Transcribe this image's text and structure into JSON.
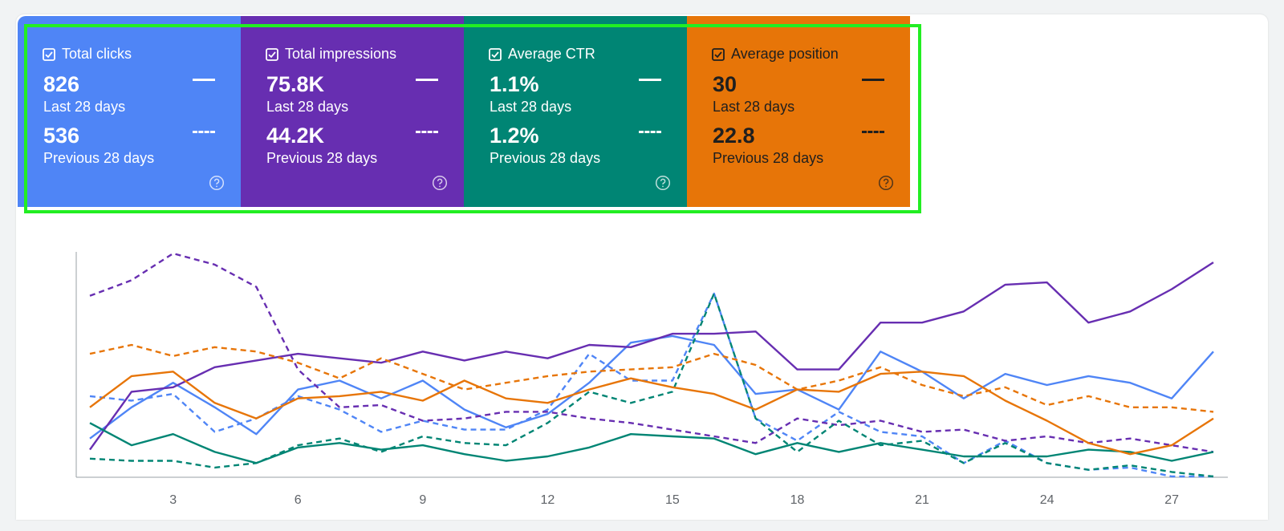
{
  "metrics": [
    {
      "label": "Total clicks",
      "value": "826",
      "period": "Last 28 days",
      "prev_value": "536",
      "prev_period": "Previous 28 days",
      "color": "#4f85f6",
      "text_color": "#ffffff"
    },
    {
      "label": "Total impressions",
      "value": "75.8K",
      "period": "Last 28 days",
      "prev_value": "44.2K",
      "prev_period": "Previous 28 days",
      "color": "#672eb1",
      "text_color": "#ffffff"
    },
    {
      "label": "Average CTR",
      "value": "1.1%",
      "period": "Last 28 days",
      "prev_value": "1.2%",
      "prev_period": "Previous 28 days",
      "color": "#008574",
      "text_color": "#ffffff"
    },
    {
      "label": "Average position",
      "value": "30",
      "period": "Last 28 days",
      "prev_value": "22.8",
      "prev_period": "Previous 28 days",
      "color": "#e77508",
      "text_color": "#1f1f1f"
    }
  ],
  "chart_data": {
    "type": "line",
    "x": [
      1,
      2,
      3,
      4,
      5,
      6,
      7,
      8,
      9,
      10,
      11,
      12,
      13,
      14,
      15,
      16,
      17,
      18,
      19,
      20,
      21,
      22,
      23,
      24,
      25,
      26,
      27,
      28
    ],
    "xticks": [
      3,
      6,
      9,
      12,
      15,
      18,
      21,
      24,
      27
    ],
    "ylim": [
      0,
      100
    ],
    "grid": false,
    "series": [
      {
        "metric": "Total clicks",
        "style": "solid",
        "color": "#4f85f6",
        "values": [
          17,
          31,
          42,
          31,
          19,
          39,
          43,
          35,
          43,
          30,
          22,
          28,
          42,
          60,
          63,
          59,
          37,
          39,
          30,
          56,
          47,
          35,
          46,
          41,
          45,
          42,
          35,
          56
        ]
      },
      {
        "metric": "Total clicks",
        "style": "dashed",
        "color": "#4f85f6",
        "values": [
          36,
          34,
          37,
          20,
          26,
          36,
          30,
          20,
          25,
          21,
          21,
          30,
          55,
          43,
          43,
          82,
          26,
          16,
          29,
          20,
          18,
          6,
          16,
          6,
          3,
          4,
          0,
          0
        ]
      },
      {
        "metric": "Total impressions",
        "style": "solid",
        "color": "#672eb1",
        "values": [
          12,
          38,
          40,
          49,
          52,
          55,
          53,
          51,
          56,
          52,
          56,
          53,
          59,
          58,
          64,
          64,
          65,
          48,
          48,
          69,
          69,
          74,
          86,
          87,
          69,
          74,
          84,
          96
        ]
      },
      {
        "metric": "Total impressions",
        "style": "dashed",
        "color": "#672eb1",
        "values": [
          81,
          88,
          100,
          95,
          85,
          48,
          31,
          32,
          25,
          26,
          29,
          29,
          26,
          24,
          21,
          18,
          15,
          26,
          23,
          25,
          20,
          21,
          16,
          18,
          15,
          17,
          14,
          11
        ]
      },
      {
        "metric": "Average CTR",
        "style": "solid",
        "color": "#008574",
        "values": [
          24,
          14,
          19,
          11,
          6,
          13,
          15,
          12,
          14,
          10,
          7,
          9,
          13,
          19,
          18,
          17,
          10,
          15,
          11,
          15,
          12,
          9,
          9,
          9,
          12,
          11,
          7,
          11
        ]
      },
      {
        "metric": "Average CTR",
        "style": "dashed",
        "color": "#008574",
        "values": [
          8,
          7,
          7,
          4,
          6,
          14,
          17,
          11,
          18,
          15,
          14,
          24,
          38,
          33,
          38,
          82,
          26,
          11,
          25,
          14,
          16,
          6,
          15,
          6,
          3,
          5,
          2,
          0
        ]
      },
      {
        "metric": "Average position",
        "style": "solid",
        "color": "#e77508",
        "values": [
          31,
          45,
          47,
          33,
          26,
          35,
          36,
          38,
          34,
          43,
          35,
          33,
          39,
          44,
          40,
          37,
          30,
          39,
          38,
          46,
          47,
          45,
          34,
          25,
          15,
          10,
          14,
          26
        ]
      },
      {
        "metric": "Average position",
        "style": "dashed",
        "color": "#e77508",
        "values": [
          55,
          59,
          54,
          58,
          56,
          51,
          44,
          53,
          46,
          39,
          42,
          45,
          47,
          48,
          49,
          55,
          50,
          39,
          43,
          49,
          41,
          36,
          40,
          32,
          36,
          31,
          31,
          29
        ]
      }
    ]
  }
}
